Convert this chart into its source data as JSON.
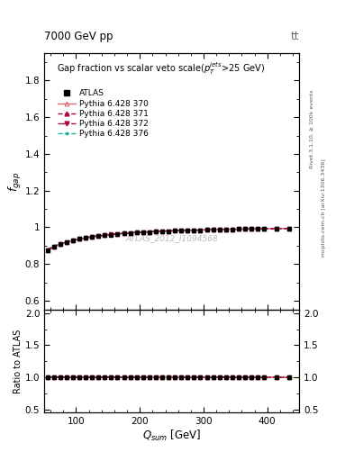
{
  "title_top": "7000 GeV pp",
  "title_top_right": "tt",
  "main_title": "Gap fraction vs scalar veto scale($p_T^{jets}$>25 GeV)",
  "xlabel": "$Q_{sum}$ [GeV]",
  "ylabel_main": "$f_{gap}$",
  "ylabel_ratio": "Ratio to ATLAS",
  "watermark": "ATLAS_2012_I1094568",
  "right_label": "Rivet 3.1.10, ≥ 100k events",
  "right_label2": "mcplots.cern.ch [arXiv:1306.3436]",
  "xlim": [
    50,
    450
  ],
  "ylim_main": [
    0.55,
    1.95
  ],
  "ylim_ratio": [
    0.45,
    2.05
  ],
  "yticks_main": [
    0.6,
    0.8,
    1.0,
    1.2,
    1.4,
    1.6,
    1.8
  ],
  "yticks_ratio": [
    0.5,
    1.0,
    1.5,
    2.0
  ],
  "atlas_x": [
    55,
    65,
    75,
    85,
    95,
    105,
    115,
    125,
    135,
    145,
    155,
    165,
    175,
    185,
    195,
    205,
    215,
    225,
    235,
    245,
    255,
    265,
    275,
    285,
    295,
    305,
    315,
    325,
    335,
    345,
    355,
    365,
    375,
    385,
    395,
    415,
    435
  ],
  "atlas_y": [
    0.874,
    0.893,
    0.907,
    0.919,
    0.928,
    0.936,
    0.942,
    0.948,
    0.952,
    0.956,
    0.96,
    0.963,
    0.966,
    0.969,
    0.971,
    0.973,
    0.975,
    0.977,
    0.978,
    0.98,
    0.981,
    0.982,
    0.983,
    0.984,
    0.985,
    0.986,
    0.987,
    0.988,
    0.988,
    0.989,
    0.99,
    0.99,
    0.991,
    0.992,
    0.992,
    0.993,
    0.994
  ],
  "atlas_yerr": [
    0.01,
    0.009,
    0.008,
    0.007,
    0.007,
    0.006,
    0.006,
    0.005,
    0.005,
    0.005,
    0.005,
    0.004,
    0.004,
    0.004,
    0.004,
    0.004,
    0.004,
    0.004,
    0.003,
    0.003,
    0.003,
    0.003,
    0.003,
    0.003,
    0.003,
    0.003,
    0.003,
    0.003,
    0.003,
    0.003,
    0.003,
    0.003,
    0.003,
    0.003,
    0.003,
    0.003,
    0.003
  ],
  "pythia_370_x": [
    55,
    65,
    75,
    85,
    95,
    105,
    115,
    125,
    135,
    145,
    155,
    165,
    175,
    185,
    195,
    205,
    215,
    225,
    235,
    245,
    255,
    265,
    275,
    285,
    295,
    305,
    315,
    325,
    335,
    345,
    355,
    365,
    375,
    385,
    395,
    415,
    435
  ],
  "pythia_370_y": [
    0.877,
    0.895,
    0.909,
    0.92,
    0.929,
    0.937,
    0.943,
    0.949,
    0.953,
    0.957,
    0.961,
    0.964,
    0.967,
    0.969,
    0.972,
    0.974,
    0.975,
    0.977,
    0.979,
    0.98,
    0.981,
    0.982,
    0.983,
    0.984,
    0.985,
    0.986,
    0.987,
    0.988,
    0.989,
    0.989,
    0.99,
    0.991,
    0.991,
    0.992,
    0.992,
    0.993,
    0.994
  ],
  "pythia_371_x": [
    55,
    65,
    75,
    85,
    95,
    105,
    115,
    125,
    135,
    145,
    155,
    165,
    175,
    185,
    195,
    205,
    215,
    225,
    235,
    245,
    255,
    265,
    275,
    285,
    295,
    305,
    315,
    325,
    335,
    345,
    355,
    365,
    375,
    385,
    395,
    415,
    435
  ],
  "pythia_371_y": [
    0.875,
    0.893,
    0.908,
    0.919,
    0.928,
    0.936,
    0.942,
    0.948,
    0.953,
    0.957,
    0.961,
    0.964,
    0.967,
    0.969,
    0.972,
    0.974,
    0.975,
    0.977,
    0.979,
    0.98,
    0.981,
    0.982,
    0.983,
    0.984,
    0.985,
    0.986,
    0.987,
    0.988,
    0.989,
    0.989,
    0.99,
    0.991,
    0.991,
    0.992,
    0.992,
    0.993,
    0.994
  ],
  "pythia_372_x": [
    55,
    65,
    75,
    85,
    95,
    105,
    115,
    125,
    135,
    145,
    155,
    165,
    175,
    185,
    195,
    205,
    215,
    225,
    235,
    245,
    255,
    265,
    275,
    285,
    295,
    305,
    315,
    325,
    335,
    345,
    355,
    365,
    375,
    385,
    395,
    415,
    435
  ],
  "pythia_372_y": [
    0.876,
    0.894,
    0.908,
    0.919,
    0.928,
    0.936,
    0.942,
    0.948,
    0.953,
    0.957,
    0.961,
    0.964,
    0.967,
    0.969,
    0.972,
    0.974,
    0.975,
    0.977,
    0.979,
    0.98,
    0.981,
    0.982,
    0.983,
    0.984,
    0.985,
    0.986,
    0.987,
    0.988,
    0.989,
    0.989,
    0.99,
    0.991,
    0.991,
    0.992,
    0.992,
    0.993,
    0.994
  ],
  "pythia_376_x": [
    55,
    65,
    75,
    85,
    95,
    105,
    115,
    125,
    135,
    145,
    155,
    165,
    175,
    185,
    195,
    205,
    215,
    225,
    235,
    245,
    255,
    265,
    275,
    285,
    295,
    305,
    315,
    325,
    335,
    345,
    355,
    365,
    375,
    385,
    395,
    415,
    435
  ],
  "pythia_376_y": [
    0.88,
    0.898,
    0.911,
    0.922,
    0.93,
    0.937,
    0.943,
    0.949,
    0.953,
    0.957,
    0.961,
    0.964,
    0.967,
    0.969,
    0.972,
    0.974,
    0.975,
    0.977,
    0.979,
    0.98,
    0.981,
    0.982,
    0.983,
    0.984,
    0.985,
    0.986,
    0.987,
    0.988,
    0.989,
    0.989,
    0.99,
    0.991,
    0.991,
    0.992,
    0.992,
    0.993,
    0.994
  ],
  "color_370": "#e07070",
  "color_371": "#b01040",
  "color_372": "#b01040",
  "color_376": "#20b0a0",
  "line_width": 1.0,
  "xticks": [
    100,
    200,
    300,
    400
  ]
}
